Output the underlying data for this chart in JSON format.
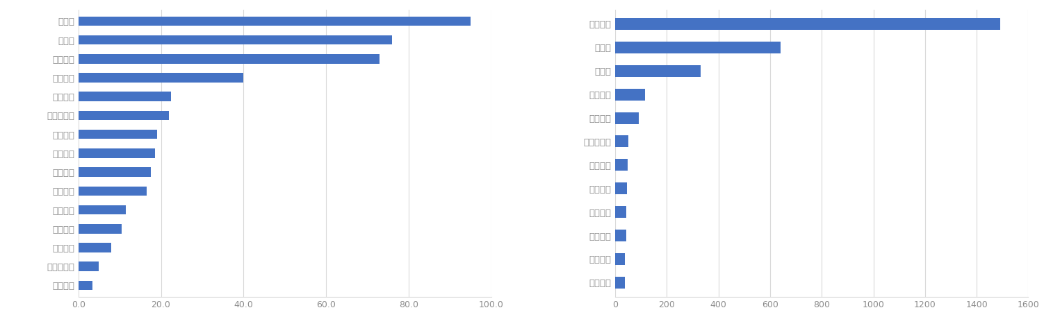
{
  "left_labels": [
    "优必选",
    "极智嘉",
    "大疆创新",
    "达闼科技",
    "极飞科技",
    "高仙机器人",
    "擎朗智能",
    "海柔创新",
    "梅卡曼德",
    "普渡科技",
    "云迹科技",
    "优地科技",
    "猎户星空",
    "洛石机器人",
    "云鲸智能"
  ],
  "left_values": [
    95.0,
    76.0,
    73.0,
    40.0,
    22.5,
    22.0,
    19.0,
    18.5,
    17.5,
    16.5,
    11.5,
    10.5,
    8.0,
    5.0,
    3.5
  ],
  "left_xlim": [
    0,
    100
  ],
  "left_xticks": [
    0.0,
    20.0,
    40.0,
    60.0,
    80.0,
    100.0
  ],
  "right_labels": [
    "大疆创新",
    "优必选",
    "极智嘉",
    "达闼科技",
    "极飞科技",
    "高仙机器人",
    "擎朗智能",
    "海柔创新",
    "梅卡曼德",
    "普渡科技",
    "优地科技",
    "云鲸智能"
  ],
  "right_values": [
    1490,
    640,
    330,
    115,
    90,
    50,
    48,
    45,
    43,
    42,
    38,
    36
  ],
  "right_xlim": [
    0,
    1600
  ],
  "right_xticks": [
    0,
    200,
    400,
    600,
    800,
    1000,
    1200,
    1400,
    1600
  ],
  "bar_color": "#4472C4",
  "grid_color": "#d9d9d9",
  "tick_color": "#8c8c8c",
  "background_color": "#ffffff",
  "label_color": "#8c8c8c",
  "label_fontsize": 9.5,
  "tick_fontsize": 9
}
